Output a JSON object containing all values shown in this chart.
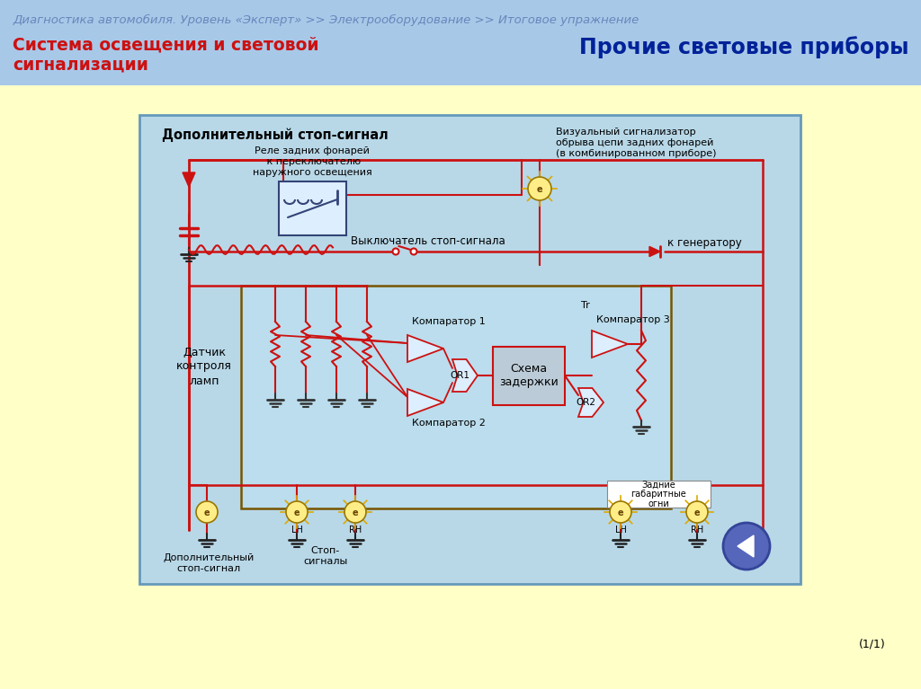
{
  "bg_outer": "#FFFFC8",
  "bg_header": "#A8C8E8",
  "bg_diagram": "#B8D8E8",
  "header_text": "Диагностика автомобиля. Уровень «Эксперт» >> Электрооборудование >> Итоговое упражнение",
  "header_text_color": "#6688BB",
  "title_left": "Система освещения и световой\nсигнализации",
  "title_left_color": "#CC1111",
  "title_right": "Прочие световые приборы",
  "title_right_color": "#002299",
  "diagram_title": "Дополнительный стоп-сигнал",
  "label_relay": "Реле задних фонарей\n к переключателю\nнаружного освещения",
  "label_switch": "Выключатель стоп-сигнала",
  "label_sensor": "Датчик\nконтроля\nламп",
  "label_comp1": "Компаратор 1",
  "label_comp2": "Компаратор 2",
  "label_comp3": "Компаратор 3",
  "label_or1": "OR1",
  "label_or2": "OR2",
  "label_delay": "Схема\nзадержки",
  "label_tr": "Tr",
  "label_visual": "Визуальный сигнализатор\nобрыва цепи задних фонарей\n(в комбинированном приборе)",
  "label_generator": "к генератору",
  "label_add_stop": "Дополнительный\nстоп-сигнал",
  "label_stop_signals": "Стоп-\nсигналы",
  "label_rear_lights": "Задние\nгабаритные\nогни",
  "label_lh": "LH",
  "label_rh": "RH",
  "label_page": "(1/1)",
  "line_color": "#CC1111",
  "dark_line_color": "#880000"
}
